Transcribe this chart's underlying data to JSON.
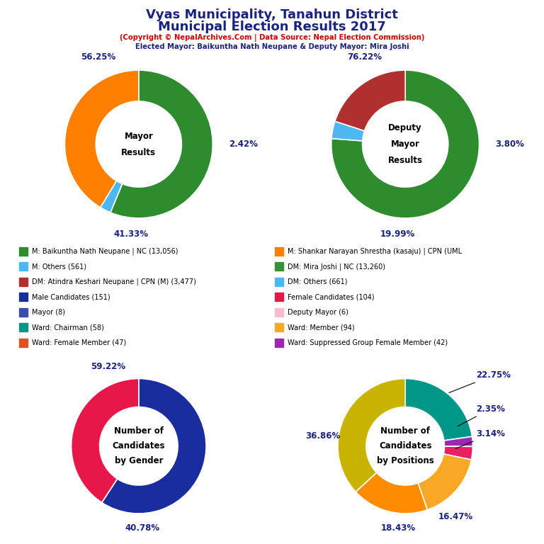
{
  "title_line1": "Vyas Municipality, Tanahun District",
  "title_line2": "Municipal Election Results 2017",
  "subtitle1": "(Copyright © NepalArchives.Com | Data Source: Nepal Election Commission)",
  "subtitle2": "Elected Mayor: Baikuntha Nath Neupane & Deputy Mayor: Mira Joshi",
  "mayor_values": [
    56.25,
    2.42,
    41.33
  ],
  "mayor_colors": [
    "#2e8b2e",
    "#4db8f0",
    "#ff7f00"
  ],
  "mayor_center_text": [
    "Mayor",
    "Results"
  ],
  "mayor_pct": [
    "56.25%",
    "2.42%",
    "41.33%"
  ],
  "deputy_values": [
    76.22,
    3.8,
    19.99
  ],
  "deputy_colors": [
    "#2e8b2e",
    "#4db8f0",
    "#b03030"
  ],
  "deputy_center_text": [
    "Deputy",
    "Mayor",
    "Results"
  ],
  "deputy_pct": [
    "76.22%",
    "3.80%",
    "19.99%"
  ],
  "gender_values": [
    59.22,
    40.78
  ],
  "gender_colors": [
    "#1a2d9e",
    "#e8174a"
  ],
  "gender_center_text": [
    "Number of",
    "Candidates",
    "by Gender"
  ],
  "gender_pct": [
    "59.22%",
    "40.78%"
  ],
  "positions_values": [
    22.75,
    2.35,
    3.14,
    16.47,
    18.43,
    36.86
  ],
  "positions_colors": [
    "#009688",
    "#9c27b0",
    "#e91e63",
    "#f9a825",
    "#ff8c00",
    "#c8b400"
  ],
  "positions_center_text": [
    "Number of",
    "Candidates",
    "by Positions"
  ],
  "positions_pct": [
    "22.75%",
    "2.35%",
    "3.14%",
    "16.47%",
    "18.43%",
    "36.86%"
  ],
  "legend_items_col1": [
    {
      "label": "M: Baikuntha Nath Neupane | NC (13,056)",
      "color": "#2e8b2e"
    },
    {
      "label": "M: Others (561)",
      "color": "#4db8f0"
    },
    {
      "label": "DM: Atindra Keshari Neupane | CPN (M) (3,477)",
      "color": "#b03030"
    },
    {
      "label": "Male Candidates (151)",
      "color": "#1a2d9e"
    },
    {
      "label": "Mayor (8)",
      "color": "#3a4faa"
    },
    {
      "label": "Ward: Chairman (58)",
      "color": "#009688"
    },
    {
      "label": "Ward: Female Member (47)",
      "color": "#e05020"
    }
  ],
  "legend_items_col2": [
    {
      "label": "M: Shankar Narayan Shrestha (kasaju) | CPN (UML",
      "color": "#ff7f00"
    },
    {
      "label": "DM: Mira Joshi | NC (13,260)",
      "color": "#3a8f3a"
    },
    {
      "label": "DM: Others (661)",
      "color": "#4db8f0"
    },
    {
      "label": "Female Candidates (104)",
      "color": "#e8174a"
    },
    {
      "label": "Deputy Mayor (6)",
      "color": "#f8bbd0"
    },
    {
      "label": "Ward: Member (94)",
      "color": "#f9a825"
    },
    {
      "label": "Ward: Suppressed Group Female Member (42)",
      "color": "#9c27b0"
    }
  ],
  "background_color": "#ffffff",
  "title_color": "#1a237e",
  "subtitle1_color": "#cc0000",
  "subtitle2_color": "#1a237e",
  "pct_color": "#1a237e"
}
